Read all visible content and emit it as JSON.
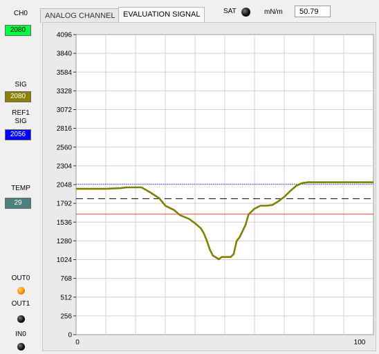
{
  "left_panel": {
    "ch0_label": "CH0",
    "ch0_value": "2080",
    "sig_label": "SIG",
    "sig_value": "2080",
    "ref1_label_line1": "REF1",
    "ref1_label_line2": "SIG",
    "ref1_value": "2056",
    "temp_label": "TEMP",
    "temp_value": "29",
    "out0_label": "OUT0",
    "out1_label": "OUT1",
    "in0_label": "IN0"
  },
  "tabs": [
    {
      "label": "ANALOG CHANNEL",
      "active": false
    },
    {
      "label": "EVALUATION SIGNAL",
      "active": true
    }
  ],
  "status": {
    "sat_label": "SAT",
    "unit_label": "mN/m",
    "unit_value": "50.79"
  },
  "colors": {
    "ch0_bg": "#00ff40",
    "sig_bg": "#8b8000",
    "ref_bg": "#0000ff",
    "temp_bg": "#4a8080",
    "signal_line": "#808000",
    "ref_line": "#3030ff",
    "threshold_line": "#ff4040",
    "dashed_line": "#000000"
  },
  "chart_data": {
    "type": "line",
    "xlim": [
      0,
      100
    ],
    "ylim": [
      0,
      4096
    ],
    "yticks": [
      0,
      256,
      512,
      768,
      1024,
      1280,
      1536,
      1792,
      2048,
      2304,
      2560,
      2816,
      3072,
      3328,
      3584,
      3840,
      4096
    ],
    "xtick_labels": [
      "0",
      "100"
    ],
    "grid": true,
    "series": [
      {
        "kind": "signal",
        "x": [
          0,
          10,
          15,
          17,
          20,
          22,
          25,
          28,
          30,
          33,
          35,
          38,
          40,
          42,
          43,
          44,
          45,
          46,
          48,
          49,
          50,
          51,
          52,
          53,
          54,
          55,
          57,
          58,
          60,
          62,
          64,
          66,
          68,
          70,
          72,
          74,
          76,
          78,
          80,
          85,
          90,
          95,
          100
        ],
        "y": [
          1990,
          1990,
          2000,
          2010,
          2010,
          2010,
          1940,
          1860,
          1760,
          1700,
          1630,
          1580,
          1520,
          1450,
          1380,
          1280,
          1160,
          1080,
          1030,
          1060,
          1060,
          1060,
          1060,
          1100,
          1280,
          1330,
          1500,
          1640,
          1720,
          1760,
          1760,
          1770,
          1820,
          1880,
          1960,
          2030,
          2070,
          2080,
          2080,
          2080,
          2080,
          2080,
          2080
        ]
      },
      {
        "kind": "reference",
        "x": [
          0,
          100
        ],
        "y": [
          2056,
          2056
        ]
      },
      {
        "kind": "dashed",
        "x": [
          0,
          100
        ],
        "y": [
          1855,
          1855
        ]
      },
      {
        "kind": "threshold",
        "x": [
          0,
          100
        ],
        "y": [
          1645,
          1645
        ]
      }
    ]
  }
}
